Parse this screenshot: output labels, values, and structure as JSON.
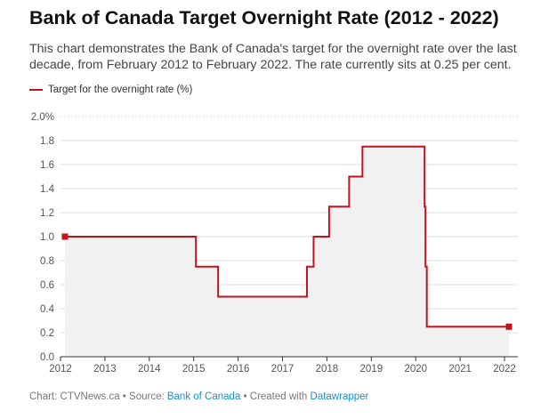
{
  "colors": {
    "line": "#c1121f",
    "area": "#f1f1f1",
    "grid": "#dddddd",
    "link": "#1a8fcf"
  },
  "chart_data": {
    "type": "line",
    "title": "Bank of Canada Target Overnight Rate (2012 - 2022)",
    "subtitle": "This chart demonstrates the Bank of Canada's target for the overnight rate over the last decade, from February 2012 to February 2022. The rate currently sits at 0.25 per cent.",
    "legend": {
      "label": "Target for the overnight rate (%)",
      "position": "top-left"
    },
    "xlabel": "",
    "ylabel": "",
    "xlim": [
      2012,
      2022.3
    ],
    "ylim": [
      0,
      2.0
    ],
    "grid": true,
    "step": true,
    "x_ticks": [
      "2012",
      "2013",
      "2014",
      "2015",
      "2016",
      "2017",
      "2018",
      "2019",
      "2020",
      "2021",
      "2022"
    ],
    "y_ticks": [
      "0.0",
      "0.2",
      "0.4",
      "0.6",
      "0.8",
      "1.0",
      "1.2",
      "1.4",
      "1.6",
      "1.8",
      "2.0%"
    ],
    "series": [
      {
        "name": "Target for the overnight rate (%)",
        "x": [
          2012.1,
          2015.05,
          2015.55,
          2017.55,
          2017.7,
          2018.05,
          2018.5,
          2018.8,
          2019.75,
          2020.2,
          2020.22,
          2020.25
        ],
        "y": [
          1.0,
          0.75,
          0.5,
          0.75,
          1.0,
          1.25,
          1.5,
          1.75,
          1.75,
          1.25,
          0.75,
          0.25
        ],
        "end_x": 2022.1,
        "endpoints_marked": true
      }
    ]
  },
  "footer": {
    "prefix": "Chart: CTVNews.ca • Source: ",
    "source": "Bank of Canada",
    "middle": " • Created with ",
    "tool": "Datawrapper"
  }
}
